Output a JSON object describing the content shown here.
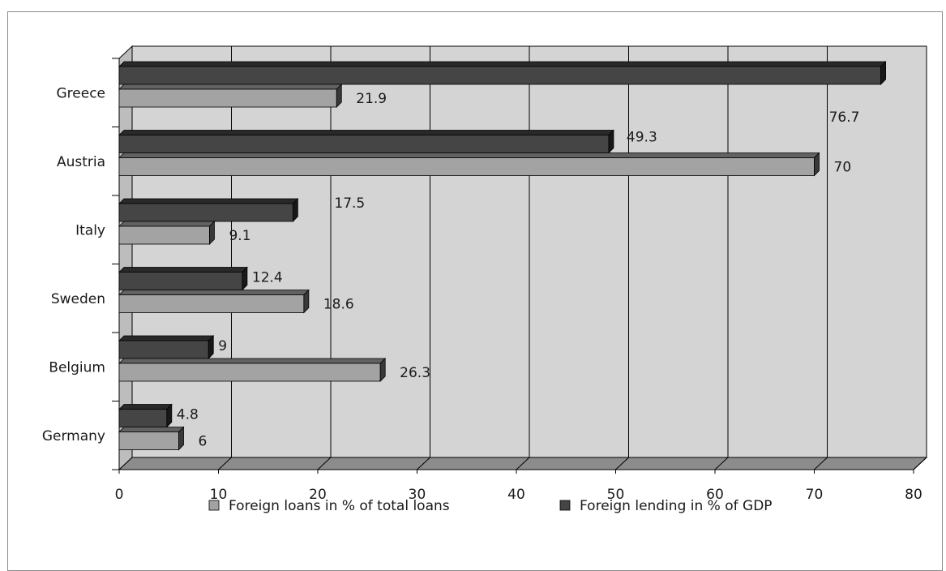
{
  "chart_data": {
    "type": "bar",
    "orientation": "horizontal",
    "style": "3d",
    "categories": [
      "Greece",
      "Austria",
      "Italy",
      "Sweden",
      "Belgium",
      "Germany"
    ],
    "series": [
      {
        "name": "Foreign lending in % of GDP",
        "color": "#454545",
        "values": [
          76.7,
          49.3,
          17.5,
          12.4,
          9,
          4.8
        ]
      },
      {
        "name": "Foreign loans in % of total loans",
        "color": "#a3a3a3",
        "values": [
          21.9,
          70,
          9.1,
          18.6,
          26.3,
          6
        ]
      }
    ],
    "data_labels": {
      "Foreign lending in % of GDP": [
        "76.7",
        "49.3",
        "17.5",
        "12.4",
        "9",
        "4.8"
      ],
      "Foreign loans in % of total loans": [
        "21.9",
        "70",
        "9.1",
        "18.6",
        "26.3",
        "6"
      ]
    },
    "xlim": [
      0,
      80
    ],
    "xticks": [
      "0",
      "10",
      "20",
      "30",
      "40",
      "50",
      "60",
      "70",
      "80"
    ],
    "grid": true,
    "legend_position": "bottom",
    "legend_order": [
      "Foreign loans in % of total loans",
      "Foreign lending in % of GDP"
    ],
    "plot_background": "#d4d4d4"
  }
}
